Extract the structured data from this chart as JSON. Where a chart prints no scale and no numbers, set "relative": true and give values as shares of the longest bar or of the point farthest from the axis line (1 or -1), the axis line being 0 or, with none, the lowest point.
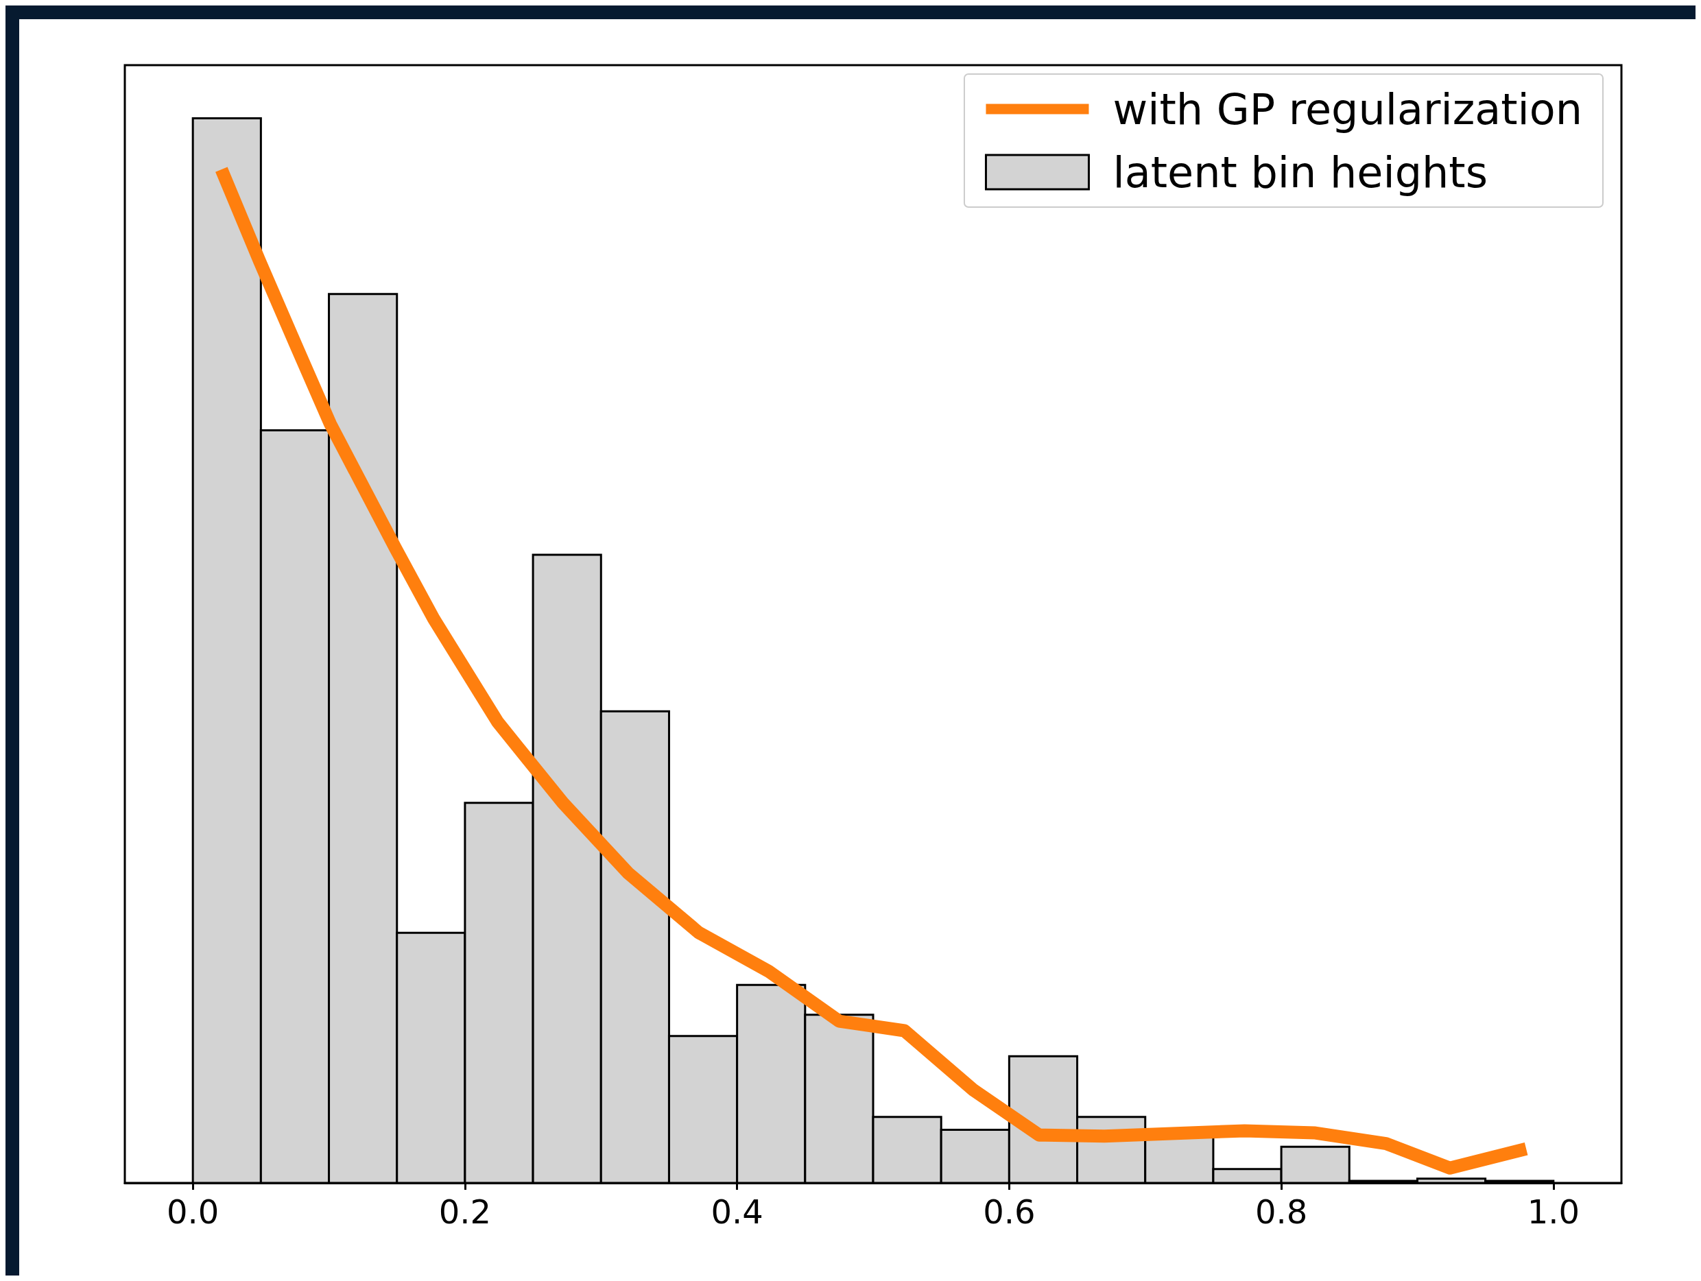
{
  "chart_data": {
    "type": "histogram",
    "relative": true,
    "bins": [
      0,
      0.05,
      0.1,
      0.15,
      0.2,
      0.25,
      0.3,
      0.35,
      0.4,
      0.45,
      0.5,
      0.55,
      0.6,
      0.65,
      0.7,
      0.75,
      0.8,
      0.85,
      0.9,
      0.95,
      1.0
    ],
    "xlim": [
      -0.05,
      1.05
    ],
    "xticks": [
      {
        "value": 0,
        "label": "0.0"
      },
      {
        "value": 0.2,
        "label": "0.2"
      },
      {
        "value": 0.4,
        "label": "0.4"
      },
      {
        "value": 0.6,
        "label": "0.6"
      },
      {
        "value": 0.8,
        "label": "0.8"
      },
      {
        "value": 1,
        "label": "1.0"
      }
    ],
    "tick_labels": "x",
    "grid": false,
    "legend": "top right",
    "series": [
      {
        "type": "line",
        "name": "with GP regularization",
        "color": "#ff7f0e",
        "x": [
          0.021,
          0.049,
          0.073,
          0.101,
          0.149,
          0.177,
          0.224,
          0.272,
          0.32,
          0.372,
          0.423,
          0.475,
          0.523,
          0.574,
          0.622,
          0.67,
          0.773,
          0.825,
          0.877,
          0.924,
          0.98
        ],
        "values": [
          0.952,
          0.866,
          0.795,
          0.713,
          0.596,
          0.53,
          0.433,
          0.357,
          0.291,
          0.235,
          0.199,
          0.152,
          0.143,
          0.087,
          0.045,
          0.044,
          0.049,
          0.047,
          0.037,
          0.014,
          0.032
        ]
      },
      {
        "name": "latent bin heights",
        "color": "#d3d3d3",
        "values": [
          1.0,
          0.707,
          0.835,
          0.235,
          0.357,
          0.59,
          0.443,
          0.138,
          0.186,
          0.158,
          0.062,
          0.05,
          0.119,
          0.062,
          0.045,
          0.013,
          0.034,
          0.002,
          0.004,
          0.002
        ]
      }
    ]
  }
}
